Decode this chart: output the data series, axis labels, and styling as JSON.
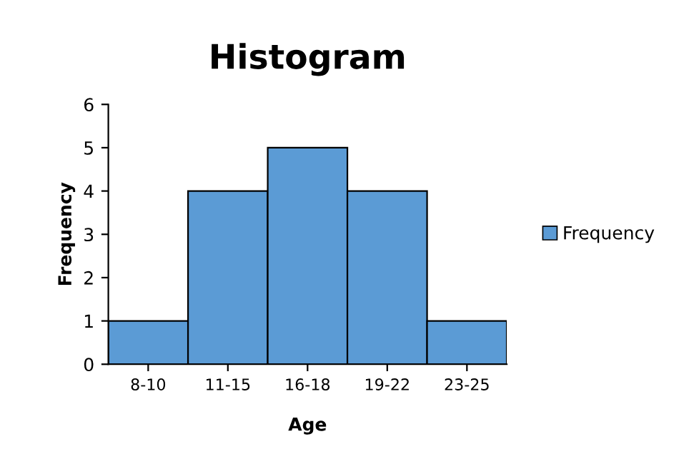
{
  "chart_data": {
    "type": "bar",
    "title": "Histogram",
    "xlabel": "Age",
    "ylabel": "Frequency",
    "categories": [
      "8-10",
      "11-15",
      "16-18",
      "19-22",
      "23-25"
    ],
    "series": [
      {
        "name": "Frequency",
        "color": "#5b9bd5",
        "values": [
          1,
          4,
          5,
          4,
          1
        ]
      }
    ],
    "ylim": [
      0,
      6
    ],
    "yticks": [
      0,
      1,
      2,
      3,
      4,
      5,
      6
    ],
    "grid": false,
    "legend": "right"
  }
}
